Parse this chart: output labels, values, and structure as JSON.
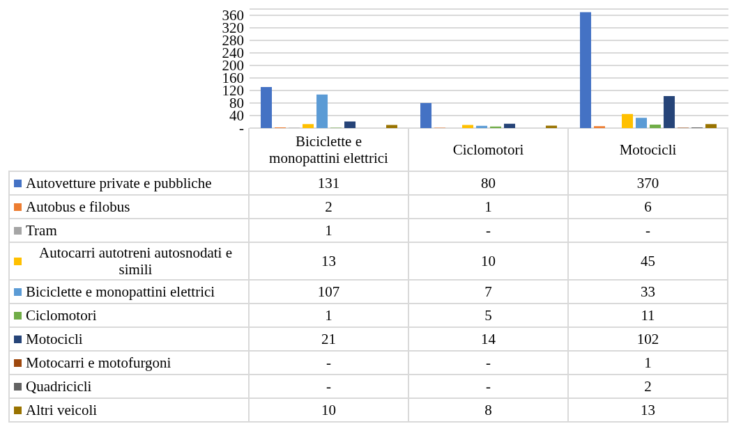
{
  "chart_data": {
    "type": "bar",
    "categories": [
      "Biciclette e monopattini elettrici",
      "Ciclomotori",
      "Motocicli"
    ],
    "series": [
      {
        "name": "Autovetture private e pubbliche",
        "color": "#4472c4",
        "values": [
          131,
          80,
          370
        ],
        "value_labels": [
          "131",
          "80",
          "370"
        ]
      },
      {
        "name": "Autobus e filobus",
        "color": "#ed7d31",
        "values": [
          2,
          1,
          6
        ],
        "value_labels": [
          "2",
          "1",
          "6"
        ]
      },
      {
        "name": "Tram",
        "color": "#a5a5a5",
        "values": [
          1,
          0,
          0
        ],
        "value_labels": [
          "1",
          "-",
          "-"
        ]
      },
      {
        "name": "Autocarri autotreni autosnodati e simili",
        "color": "#ffc000",
        "values": [
          13,
          10,
          45
        ],
        "value_labels": [
          "13",
          "10",
          "45"
        ]
      },
      {
        "name": "Biciclette e monopattini elettrici",
        "color": "#5b9bd5",
        "values": [
          107,
          7,
          33
        ],
        "value_labels": [
          "107",
          "7",
          "33"
        ]
      },
      {
        "name": "Ciclomotori",
        "color": "#70ad47",
        "values": [
          1,
          5,
          11
        ],
        "value_labels": [
          "1",
          "5",
          "11"
        ]
      },
      {
        "name": "Motocicli",
        "color": "#264478",
        "values": [
          21,
          14,
          102
        ],
        "value_labels": [
          "21",
          "14",
          "102"
        ]
      },
      {
        "name": "Motocarri e motofurgoni",
        "color": "#9e480e",
        "values": [
          0,
          0,
          1
        ],
        "value_labels": [
          "-",
          "-",
          "1"
        ]
      },
      {
        "name": "Quadricicli",
        "color": "#636363",
        "values": [
          0,
          0,
          2
        ],
        "value_labels": [
          "-",
          "-",
          "2"
        ]
      },
      {
        "name": "Altri veicoli",
        "color": "#997300",
        "values": [
          10,
          8,
          13
        ],
        "value_labels": [
          "10",
          "8",
          "13"
        ]
      }
    ],
    "ylim": [
      0,
      380
    ],
    "yticks": [
      {
        "value": 0,
        "label": "-"
      },
      40,
      80,
      120,
      160,
      200,
      240,
      280,
      320,
      360
    ],
    "grid": "y",
    "legend": "bottom"
  }
}
